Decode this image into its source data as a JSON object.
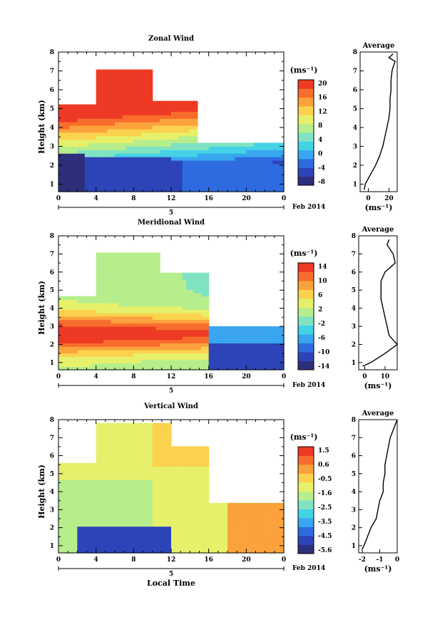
{
  "chart_data": [
    {
      "type": "heatmap",
      "title": "Zonal Wind",
      "ylabel": "Height (km)",
      "xticks": [
        "0",
        "4",
        "8",
        "12",
        "16",
        "20",
        "0"
      ],
      "yticks": [
        "1",
        "2",
        "3",
        "4",
        "5",
        "6",
        "7",
        "8"
      ],
      "ylim": [
        0.6,
        8.0
      ],
      "xlim": [
        0,
        24
      ],
      "date_label": "5",
      "month_label": "Feb 2014",
      "units": "(ms⁻¹)",
      "colorbar_ticks": [
        "20",
        "16",
        "12",
        "8",
        "4",
        "0",
        "-4",
        "-8"
      ],
      "colorbar_range": [
        -10,
        22
      ],
      "profile": {
        "title": "Average",
        "xlabel": "(ms⁻¹)",
        "xticks": [
          "0",
          "20"
        ],
        "xlim": [
          -8,
          28
        ],
        "heights": [
          0.7,
          1.0,
          1.5,
          2.0,
          2.5,
          3.0,
          3.5,
          4.0,
          4.5,
          5.0,
          5.5,
          6.0,
          6.5,
          7.0,
          7.2,
          7.5,
          7.7,
          7.9
        ],
        "values": [
          -4,
          -3,
          2,
          7,
          11,
          14,
          16,
          18,
          20,
          21,
          21,
          22,
          22,
          23,
          24,
          26,
          20,
          24
        ]
      }
    },
    {
      "type": "heatmap",
      "title": "Meridional Wind",
      "ylabel": "Height (km)",
      "xticks": [
        "0",
        "4",
        "8",
        "12",
        "16",
        "20",
        "0"
      ],
      "yticks": [
        "1",
        "2",
        "3",
        "4",
        "5",
        "6",
        "7",
        "8"
      ],
      "ylim": [
        0.6,
        8.0
      ],
      "xlim": [
        0,
        24
      ],
      "date_label": "5",
      "month_label": "Feb 2014",
      "units": "(ms⁻¹)",
      "colorbar_ticks": [
        "14",
        "10",
        "6",
        "2",
        "-2",
        "-6",
        "-10",
        "-14"
      ],
      "colorbar_range": [
        -16,
        16
      ],
      "profile": {
        "title": "Average",
        "xlabel": "(ms⁻¹)",
        "xticks": [
          "0",
          "10"
        ],
        "xlim": [
          -3,
          16
        ],
        "heights": [
          0.8,
          1.0,
          1.5,
          2.0,
          2.5,
          3.0,
          3.5,
          4.0,
          4.5,
          5.0,
          5.5,
          6.0,
          6.5,
          7.0,
          7.5,
          7.8
        ],
        "values": [
          -1,
          3,
          10,
          16,
          12,
          11,
          10,
          9,
          8,
          8,
          8,
          10,
          15,
          14,
          11,
          12
        ]
      }
    },
    {
      "type": "heatmap",
      "title": "Vertical Wind",
      "ylabel": "Height (km)",
      "xlabel": "Local Time",
      "xticks": [
        "0",
        "4",
        "8",
        "12",
        "16",
        "20",
        "0"
      ],
      "yticks": [
        "1",
        "2",
        "3",
        "4",
        "5",
        "6",
        "7",
        "8"
      ],
      "ylim": [
        0.6,
        8.0
      ],
      "xlim": [
        0,
        24
      ],
      "date_label": "5",
      "month_label": "Feb 2014",
      "units": "(ms⁻¹)",
      "colorbar_ticks": [
        "1.5",
        "0.6",
        "-0.5",
        "-1.6",
        "-2.5",
        "-3.5",
        "-4.5",
        "-5.6"
      ],
      "colorbar_range": [
        -6.0,
        2.0
      ],
      "profile": {
        "title": "Average",
        "xlabel": "(ms⁻¹)",
        "xticks": [
          "-2",
          "-1",
          "0"
        ],
        "xlim": [
          -2.2,
          0
        ],
        "heights": [
          0.8,
          1.0,
          1.5,
          2.0,
          2.5,
          3.0,
          3.5,
          4.0,
          4.5,
          5.0,
          5.5,
          6.0,
          6.5,
          7.0,
          7.5,
          8.0
        ],
        "values": [
          -2.0,
          -1.9,
          -1.7,
          -1.5,
          -1.2,
          -1.1,
          -1.0,
          -0.8,
          -0.8,
          -0.7,
          -0.7,
          -0.6,
          -0.5,
          -0.4,
          -0.2,
          0.0
        ]
      }
    }
  ]
}
